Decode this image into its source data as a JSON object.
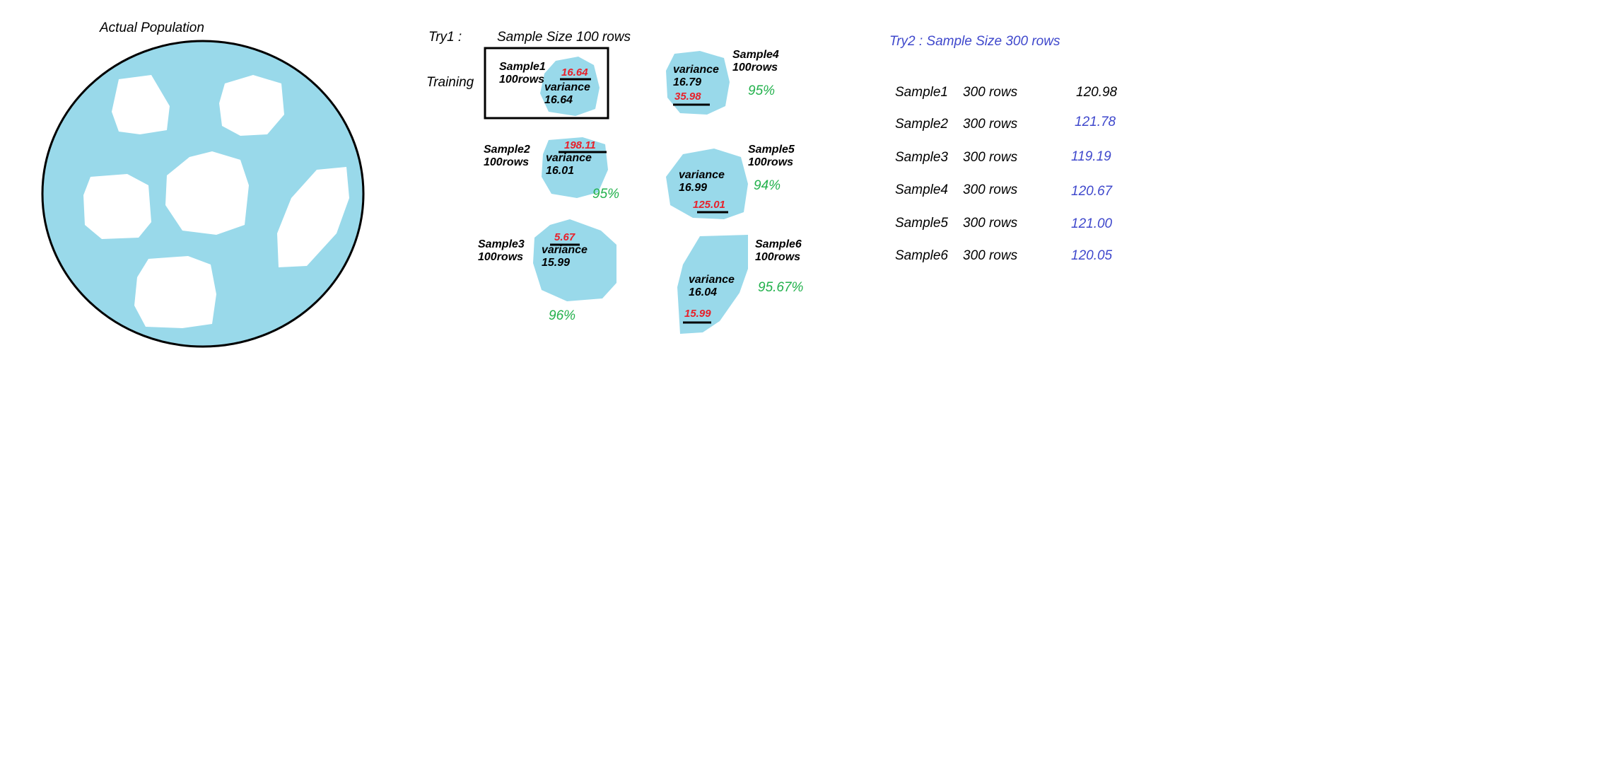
{
  "population": {
    "label": "Actual Population",
    "colors": {
      "fill": "#99d9ea",
      "holes": "#ffffff",
      "outline": "#000000"
    }
  },
  "try1": {
    "label": "Try1 :",
    "sample_size": "Sample Size 100 rows",
    "training_label": "Training",
    "samples": [
      {
        "name": "Sample1",
        "rows": "100rows",
        "variance_label": "variance",
        "variance": "16.64",
        "red_value": "16.64",
        "percent": ""
      },
      {
        "name": "Sample2",
        "rows": "100rows",
        "variance_label": "variance",
        "variance": "16.01",
        "red_value": "198.11",
        "percent": "95%"
      },
      {
        "name": "Sample3",
        "rows": "100rows",
        "variance_label": "variance",
        "variance": "15.99",
        "red_value": "5.67",
        "percent": "96%"
      },
      {
        "name": "Sample4",
        "rows": "100rows",
        "variance_label": "variance",
        "variance": "16.79",
        "red_value": "35.98",
        "percent": "95%"
      },
      {
        "name": "Sample5",
        "rows": "100rows",
        "variance_label": "variance",
        "variance": "16.99",
        "red_value": "125.01",
        "percent": "94%"
      },
      {
        "name": "Sample6",
        "rows": "100rows",
        "variance_label": "variance",
        "variance": "16.04",
        "red_value": "15.99",
        "percent": "95.67%"
      }
    ],
    "colors": {
      "blob": "#99d9ea",
      "red": "#e8202a",
      "green": "#22b14c"
    }
  },
  "try2": {
    "title": "Try2 : Sample Size 300 rows",
    "rows": [
      {
        "name": "Sample1",
        "rows": "300 rows",
        "value": "120.98",
        "color": "#000000"
      },
      {
        "name": "Sample2",
        "rows": "300 rows",
        "value": "121.78",
        "color": "#3f48cc"
      },
      {
        "name": "Sample3",
        "rows": "300 rows",
        "value": "119.19",
        "color": "#3f48cc"
      },
      {
        "name": "Sample4",
        "rows": "300 rows",
        "value": "120.67",
        "color": "#3f48cc"
      },
      {
        "name": "Sample5",
        "rows": "300 rows",
        "value": "121.00",
        "color": "#3f48cc"
      },
      {
        "name": "Sample6",
        "rows": "300 rows",
        "value": "120.05",
        "color": "#3f48cc"
      }
    ],
    "colors": {
      "title": "#3f48cc"
    }
  }
}
